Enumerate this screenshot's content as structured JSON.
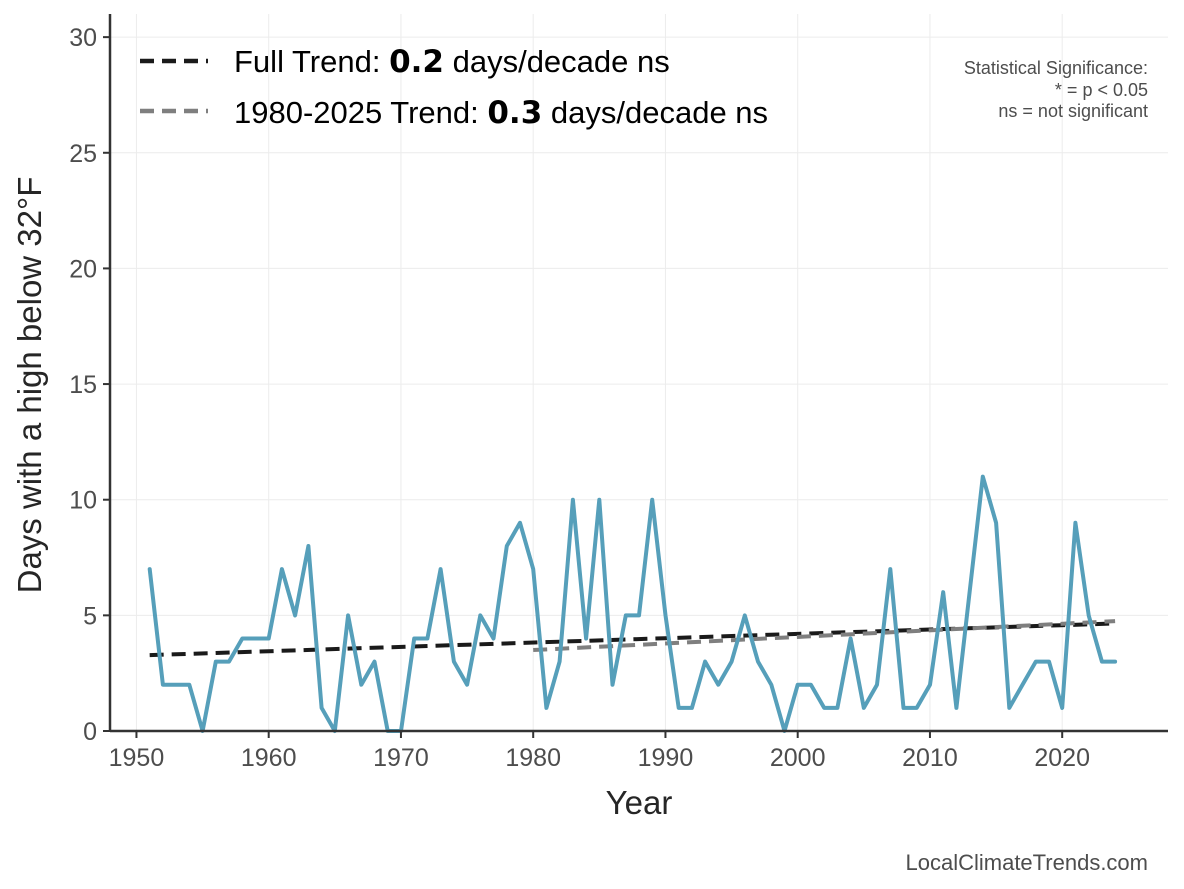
{
  "chart_data": {
    "type": "line",
    "xlabel": "Year",
    "ylabel": "Days with a high below 32°F",
    "xlim": [
      1948,
      2028
    ],
    "ylim": [
      0,
      31
    ],
    "xticks": [
      1950,
      1960,
      1970,
      1980,
      1990,
      2000,
      2010,
      2020
    ],
    "yticks": [
      0,
      5,
      10,
      15,
      20,
      25,
      30
    ],
    "grid": true,
    "series": [
      {
        "name": "Days with a high below 32°F",
        "color": "#569FBA",
        "x": [
          1951,
          1952,
          1953,
          1954,
          1955,
          1956,
          1957,
          1958,
          1959,
          1960,
          1961,
          1962,
          1963,
          1964,
          1965,
          1966,
          1967,
          1968,
          1969,
          1970,
          1971,
          1972,
          1973,
          1974,
          1975,
          1976,
          1977,
          1978,
          1979,
          1980,
          1981,
          1982,
          1983,
          1984,
          1985,
          1986,
          1987,
          1988,
          1989,
          1990,
          1991,
          1992,
          1993,
          1994,
          1995,
          1996,
          1997,
          1998,
          1999,
          2000,
          2001,
          2002,
          2003,
          2004,
          2005,
          2006,
          2007,
          2008,
          2009,
          2010,
          2011,
          2012,
          2013,
          2014,
          2015,
          2016,
          2017,
          2018,
          2019,
          2020,
          2021,
          2022,
          2023,
          2024
        ],
        "values": [
          7,
          2,
          2,
          2,
          0,
          3,
          3,
          4,
          4,
          4,
          7,
          5,
          8,
          1,
          0,
          5,
          2,
          3,
          0,
          0,
          4,
          4,
          7,
          3,
          2,
          5,
          4,
          8,
          9,
          7,
          1,
          3,
          10,
          4,
          10,
          2,
          5,
          5,
          10,
          5,
          1,
          1,
          3,
          2,
          3,
          5,
          3,
          2,
          0,
          2,
          2,
          1,
          1,
          4,
          1,
          2,
          7,
          1,
          1,
          2,
          6,
          1,
          6,
          11,
          9,
          1,
          2,
          3,
          3,
          1,
          9,
          5,
          3,
          3
        ]
      }
    ],
    "trends": [
      {
        "name": "Full Trend",
        "label_prefix": "Full Trend: ",
        "value_text": "0.2",
        "label_suffix": " days/decade ns",
        "color": "#1a1a1a",
        "x": [
          1951,
          2024
        ],
        "y": [
          3.28,
          4.65
        ]
      },
      {
        "name": "1980-2025 Trend",
        "label_prefix": "1980-2025 Trend: ",
        "value_text": "0.3",
        "label_suffix": " days/decade ns",
        "color": "#7f7f7f",
        "x": [
          1980,
          2024
        ],
        "y": [
          3.5,
          4.75
        ]
      }
    ],
    "annotations": {
      "significance_title": "Statistical Significance:",
      "significance_line1": "* = p < 0.05",
      "significance_line2": "ns = not significant",
      "credit": "LocalClimateTrends.com"
    }
  }
}
